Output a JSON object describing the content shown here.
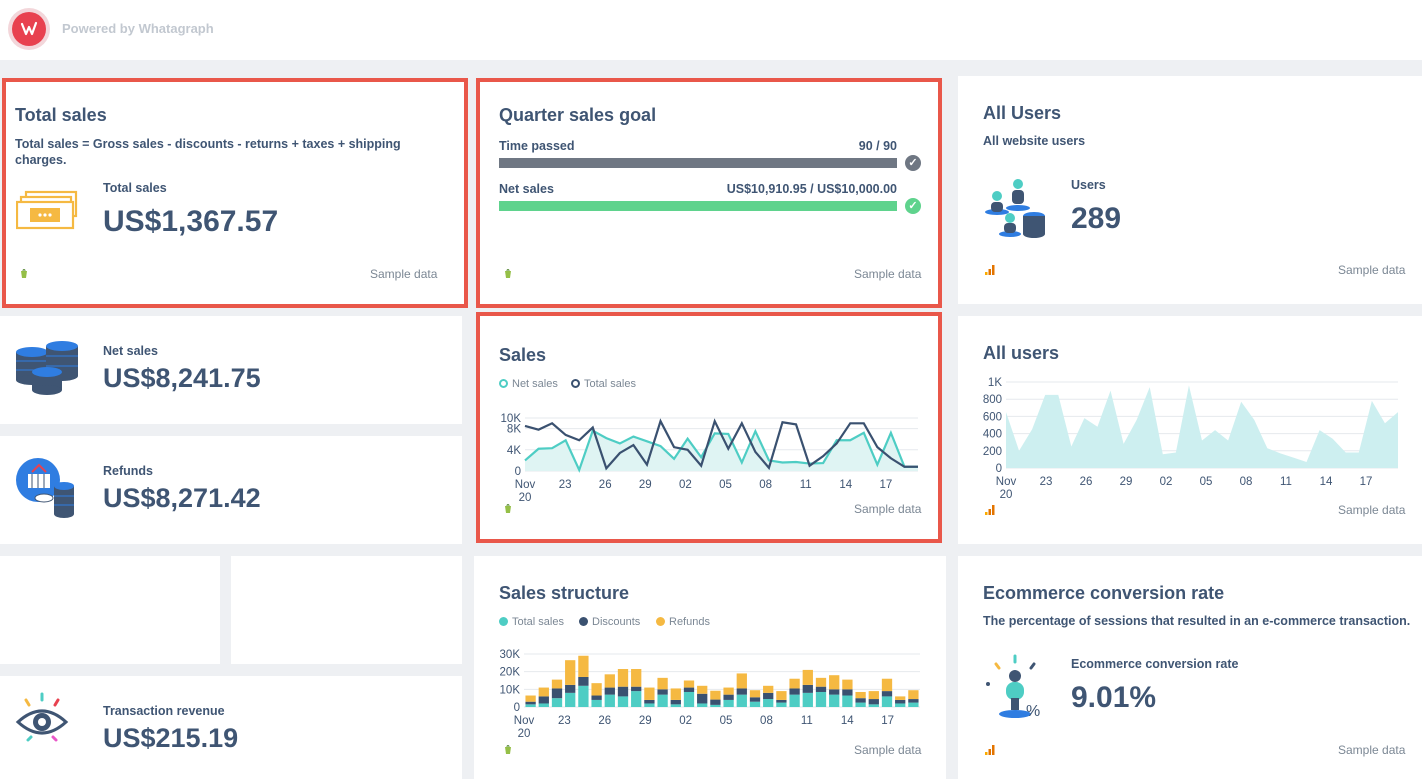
{
  "header": {
    "powered_by": "Powered by Whatagraph"
  },
  "colors": {
    "accent_red": "#e9574a",
    "teal": "#4ecdc4",
    "navy": "#3a5170",
    "gold": "#f5b942",
    "green": "#5fd38d",
    "gray_bar": "#6f7783",
    "area": "#cdeff0"
  },
  "total_sales": {
    "title": "Total sales",
    "description": "Total sales = Gross sales - discounts - returns + taxes + shipping charges.",
    "label": "Total sales",
    "value": "US$1,367.57",
    "sample": "Sample data",
    "icon": "money-bills-icon",
    "source_icon": "shopify-icon"
  },
  "quarter_goal": {
    "title": "Quarter sales goal",
    "rows": [
      {
        "label": "Time passed",
        "value": "90 / 90",
        "progress": 1.0
      },
      {
        "label": "Net sales",
        "value": "US$10,910.95 / US$10,000.00",
        "progress": 1.0
      }
    ],
    "sample": "Sample data"
  },
  "all_users_metric": {
    "title": "All Users",
    "description": "All website users",
    "label": "Users",
    "value": "289",
    "sample": "Sample data"
  },
  "net_sales": {
    "label": "Net sales",
    "value": "US$8,241.75"
  },
  "refunds": {
    "label": "Refunds",
    "value": "US$8,271.42"
  },
  "transaction_revenue": {
    "label": "Transaction revenue",
    "value": "US$215.19"
  },
  "sales_chart": {
    "title": "Sales",
    "sample": "Sample data",
    "chart_data": {
      "type": "line",
      "x": [
        "Nov 20",
        "21",
        "22",
        "23",
        "24",
        "25",
        "26",
        "27",
        "28",
        "29",
        "30",
        "Dec 01",
        "02",
        "03",
        "04",
        "05",
        "06",
        "07",
        "08",
        "09",
        "10",
        "11",
        "12",
        "13",
        "14",
        "15",
        "16",
        "17",
        "18",
        "19"
      ],
      "xticks": [
        "Nov\n20",
        "23",
        "26",
        "29",
        "02",
        "05",
        "08",
        "11",
        "14",
        "17"
      ],
      "yticks": [
        "0",
        "4K",
        "8K",
        "10K"
      ],
      "ylim": [
        0,
        10000
      ],
      "series": [
        {
          "name": "Net sales",
          "color": "#4ecdc4",
          "values": [
            2000,
            4200,
            4300,
            5800,
            200,
            7600,
            6200,
            5200,
            6500,
            5600,
            4700,
            2300,
            6100,
            2600,
            7100,
            7000,
            1600,
            7500,
            2000,
            1600,
            1700,
            1400,
            1500,
            5800,
            5800,
            7200,
            1200,
            7200,
            800,
            800
          ]
        },
        {
          "name": "Total sales",
          "color": "#3a5170",
          "values": [
            8500,
            7800,
            9000,
            6800,
            5800,
            8200,
            500,
            3400,
            4900,
            1200,
            9400,
            4500,
            4000,
            1000,
            9400,
            4200,
            9000,
            3600,
            600,
            9200,
            8800,
            1000,
            2800,
            5200,
            9000,
            9000,
            4500,
            2400,
            800,
            800
          ]
        }
      ]
    }
  },
  "all_users_chart": {
    "title": "All users",
    "sample": "Sample data",
    "chart_data": {
      "type": "area",
      "xticks": [
        "Nov\n20",
        "23",
        "26",
        "29",
        "02",
        "05",
        "08",
        "11",
        "14",
        "17"
      ],
      "yticks": [
        "0",
        "200",
        "400",
        "600",
        "800",
        "1K"
      ],
      "ylim": [
        0,
        1000
      ],
      "series": [
        {
          "name": "Users",
          "color": "#a8e2e4",
          "values": [
            650,
            200,
            450,
            850,
            850,
            250,
            580,
            480,
            900,
            280,
            560,
            940,
            160,
            180,
            960,
            320,
            440,
            320,
            770,
            560,
            230,
            170,
            120,
            70,
            440,
            340,
            180,
            180,
            780,
            520,
            650
          ]
        }
      ]
    }
  },
  "sales_structure": {
    "title": "Sales structure",
    "sample": "Sample data",
    "chart_data": {
      "type": "bar",
      "stacked": true,
      "xticks": [
        "Nov\n20",
        "23",
        "26",
        "29",
        "02",
        "05",
        "08",
        "11",
        "14",
        "17"
      ],
      "yticks": [
        "0",
        "10K",
        "20K",
        "30K"
      ],
      "ylim": [
        0,
        30000
      ],
      "series": [
        {
          "name": "Total sales",
          "color": "#4ecdc4",
          "values": [
            1500,
            2000,
            5000,
            8000,
            12000,
            4000,
            7000,
            6000,
            9000,
            2000,
            7000,
            1500,
            8500,
            2000,
            1200,
            4000,
            7000,
            3000,
            4500,
            2500,
            7000,
            8000,
            8500,
            7000,
            6500,
            2500,
            1500,
            6000,
            2000,
            2500
          ]
        },
        {
          "name": "Discounts",
          "color": "#3a5170",
          "values": [
            1500,
            4000,
            5500,
            4500,
            5000,
            2500,
            4000,
            5500,
            2500,
            2000,
            3000,
            2500,
            2500,
            5500,
            3000,
            3000,
            3500,
            2500,
            3500,
            1500,
            3500,
            4500,
            3000,
            3000,
            3500,
            2500,
            3000,
            3000,
            2000,
            2000
          ]
        },
        {
          "name": "Refunds",
          "color": "#f5b942",
          "values": [
            3500,
            5000,
            5000,
            14000,
            12000,
            7000,
            7500,
            10000,
            10000,
            7000,
            6500,
            6500,
            4000,
            4500,
            5000,
            4000,
            8500,
            4000,
            4000,
            5000,
            5500,
            8500,
            5000,
            8000,
            5500,
            3500,
            4500,
            7000,
            2000,
            5000
          ]
        }
      ]
    }
  },
  "conversion": {
    "title": "Ecommerce conversion rate",
    "description": "The percentage of sessions that resulted in an e-commerce transaction.",
    "label": "Ecommerce conversion rate",
    "value": "9.01%",
    "sample": "Sample data"
  }
}
